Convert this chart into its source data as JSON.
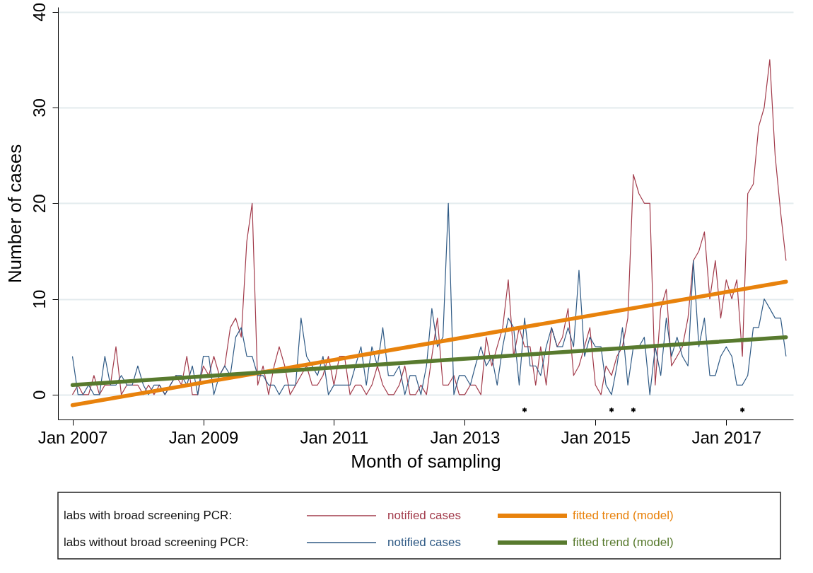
{
  "chart_data": {
    "type": "line",
    "xlabel": "Month of sampling",
    "ylabel": "Number of cases",
    "x": [
      "2007-01",
      "2007-02",
      "2007-03",
      "2007-04",
      "2007-05",
      "2007-06",
      "2007-07",
      "2007-08",
      "2007-09",
      "2007-10",
      "2007-11",
      "2007-12",
      "2008-01",
      "2008-02",
      "2008-03",
      "2008-04",
      "2008-05",
      "2008-06",
      "2008-07",
      "2008-08",
      "2008-09",
      "2008-10",
      "2008-11",
      "2008-12",
      "2009-01",
      "2009-02",
      "2009-03",
      "2009-04",
      "2009-05",
      "2009-06",
      "2009-07",
      "2009-08",
      "2009-09",
      "2009-10",
      "2009-11",
      "2009-12",
      "2010-01",
      "2010-02",
      "2010-03",
      "2010-04",
      "2010-05",
      "2010-06",
      "2010-07",
      "2010-08",
      "2010-09",
      "2010-10",
      "2010-11",
      "2010-12",
      "2011-01",
      "2011-02",
      "2011-03",
      "2011-04",
      "2011-05",
      "2011-06",
      "2011-07",
      "2011-08",
      "2011-09",
      "2011-10",
      "2011-11",
      "2011-12",
      "2012-01",
      "2012-02",
      "2012-03",
      "2012-04",
      "2012-05",
      "2012-06",
      "2012-07",
      "2012-08",
      "2012-09",
      "2012-10",
      "2012-11",
      "2012-12",
      "2013-01",
      "2013-02",
      "2013-03",
      "2013-04",
      "2013-05",
      "2013-06",
      "2013-07",
      "2013-08",
      "2013-09",
      "2013-10",
      "2013-11",
      "2013-12",
      "2014-01",
      "2014-02",
      "2014-03",
      "2014-04",
      "2014-05",
      "2014-06",
      "2014-07",
      "2014-08",
      "2014-09",
      "2014-10",
      "2014-11",
      "2014-12",
      "2015-01",
      "2015-02",
      "2015-03",
      "2015-04",
      "2015-05",
      "2015-06",
      "2015-07",
      "2015-08",
      "2015-09",
      "2015-10",
      "2015-11",
      "2015-12",
      "2016-01",
      "2016-02",
      "2016-03",
      "2016-04",
      "2016-05",
      "2016-06",
      "2016-07",
      "2016-08",
      "2016-09",
      "2016-10",
      "2016-11",
      "2016-12",
      "2017-01",
      "2017-02",
      "2017-03",
      "2017-04",
      "2017-05",
      "2017-06",
      "2017-07",
      "2017-08",
      "2017-09",
      "2017-10",
      "2017-11",
      "2017-12"
    ],
    "series": [
      {
        "name": "notified cases",
        "color": "#a23b4b",
        "values": [
          0,
          1,
          0,
          0,
          2,
          0,
          1,
          1,
          5,
          0,
          1,
          1,
          1,
          0,
          1,
          0,
          1,
          0,
          1,
          2,
          1,
          4,
          0,
          0,
          3,
          2,
          4,
          2,
          3,
          7,
          8,
          6,
          16,
          20,
          1,
          3,
          0,
          3,
          5,
          3,
          0,
          1,
          2,
          3,
          1,
          1,
          2,
          4,
          1,
          4,
          4,
          0,
          1,
          1,
          0,
          1,
          3,
          1,
          0,
          0,
          1,
          3,
          0,
          0,
          1,
          0,
          4,
          8,
          1,
          1,
          2,
          0,
          0,
          1,
          1,
          0,
          6,
          3,
          5,
          7,
          12,
          4,
          7,
          5,
          5,
          1,
          5,
          1,
          7,
          5,
          6,
          9,
          2,
          3,
          5,
          7,
          1,
          0,
          3,
          2,
          4,
          5,
          8,
          23,
          21,
          20,
          20,
          1,
          9,
          11,
          3,
          4,
          5,
          8,
          14,
          15,
          17,
          10,
          14,
          8,
          12,
          10,
          12,
          4,
          21,
          22,
          28,
          30,
          35,
          25,
          19,
          14
        ]
      },
      {
        "name": "notified cases",
        "color": "#2f5a85",
        "values": [
          4,
          0,
          0,
          1,
          0,
          0,
          4,
          1,
          1,
          2,
          1,
          1,
          3,
          1,
          0,
          1,
          1,
          0,
          1,
          2,
          2,
          1,
          3,
          0,
          4,
          4,
          0,
          2,
          3,
          2,
          6,
          7,
          4,
          4,
          2,
          2,
          1,
          1,
          0,
          1,
          1,
          1,
          8,
          4,
          3,
          2,
          4,
          0,
          1,
          1,
          1,
          1,
          3,
          5,
          1,
          5,
          3,
          7,
          2,
          2,
          3,
          0,
          2,
          2,
          0,
          3,
          9,
          5,
          6,
          20,
          0,
          2,
          2,
          1,
          3,
          5,
          3,
          4,
          1,
          5,
          8,
          7,
          1,
          8,
          3,
          3,
          2,
          5,
          7,
          5,
          5,
          7,
          5,
          13,
          4,
          6,
          5,
          5,
          1,
          0,
          3,
          7,
          1,
          5,
          5,
          6,
          0,
          5,
          2,
          8,
          4,
          6,
          4,
          3,
          14,
          5,
          8,
          2,
          2,
          4,
          5,
          4,
          1,
          1,
          2,
          7,
          7,
          10,
          9,
          8,
          8,
          4
        ]
      },
      {
        "name": "fitted trend (model)",
        "type": "line",
        "color": "#e8820c",
        "x": [
          "2007-01",
          "2017-12"
        ],
        "values": [
          -1.1,
          11.8
        ]
      },
      {
        "name": "fitted trend (model)",
        "type": "line",
        "color": "#587a2e",
        "x": [
          "2007-01",
          "2017-12"
        ],
        "values": [
          1.0,
          6.0
        ]
      },
      {
        "type": "scatter",
        "color": "#000000",
        "x": [
          "2013-12",
          "2015-04",
          "2015-08",
          "2017-04"
        ],
        "values": [
          -1.6,
          -1.6,
          -1.6,
          -1.6
        ]
      }
    ],
    "xlim": [
      "2006-10-12",
      "2018-01-10"
    ],
    "xticks": [
      {
        "value": "2007-01",
        "label": "Jan 2007"
      },
      {
        "value": "2009-01",
        "label": "Jan 2009"
      },
      {
        "value": "2011-01",
        "label": "Jan 2011"
      },
      {
        "value": "2013-01",
        "label": "Jan 2013"
      },
      {
        "value": "2015-01",
        "label": "Jan 2015"
      },
      {
        "value": "2017-01",
        "label": "Jan 2017"
      }
    ],
    "ylim": [
      -2.6,
      40.5
    ],
    "yticks": [
      0,
      10,
      20,
      30,
      40
    ],
    "grid": "y",
    "legend": "bottom",
    "annotations": [
      "labs with broad screening PCR:",
      "labs without broad screening PCR:"
    ]
  }
}
